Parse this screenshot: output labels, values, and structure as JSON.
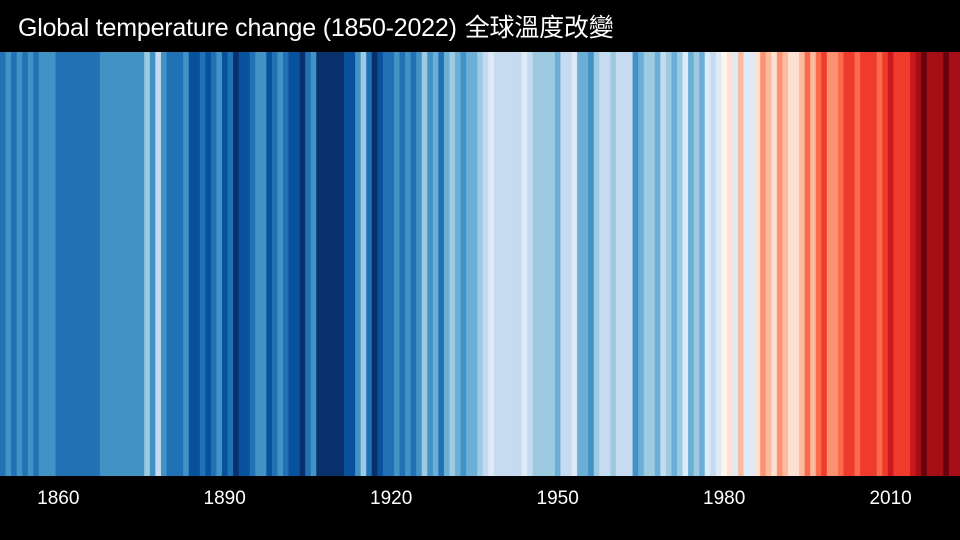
{
  "title": {
    "text": "Global temperature change (1850-2022)",
    "cjk": "全球溫度改變"
  },
  "chart_data": {
    "type": "heatmap",
    "title": "Global temperature change (1850-2022) 全球溫度改變",
    "x_start": 1850,
    "x_end": 2022,
    "xlabel": "",
    "ylabel": "",
    "tick_labels": [
      "1860",
      "1890",
      "1920",
      "1950",
      "1980",
      "2010"
    ],
    "tick_years": [
      1860,
      1890,
      1920,
      1950,
      1980,
      2010
    ],
    "stripes": [
      {
        "from": 1850,
        "to": 1850,
        "color": "#2171b5"
      },
      {
        "from": 1851,
        "to": 1851,
        "color": "#4292c6"
      },
      {
        "from": 1852,
        "to": 1852,
        "color": "#2171b5"
      },
      {
        "from": 1853,
        "to": 1853,
        "color": "#4292c6"
      },
      {
        "from": 1854,
        "to": 1854,
        "color": "#2171b5"
      },
      {
        "from": 1855,
        "to": 1855,
        "color": "#4292c6"
      },
      {
        "from": 1856,
        "to": 1856,
        "color": "#2171b5"
      },
      {
        "from": 1857,
        "to": 1857,
        "color": "#4292c6"
      },
      {
        "from": 1858,
        "to": 1858,
        "color": "#4292c6"
      },
      {
        "from": 1859,
        "to": 1859,
        "color": "#4292c6"
      },
      {
        "from": 1860,
        "to": 1867,
        "color": "#2171b5"
      },
      {
        "from": 1868,
        "to": 1868,
        "color": "#4292c6"
      },
      {
        "from": 1869,
        "to": 1869,
        "color": "#4292c6"
      },
      {
        "from": 1870,
        "to": 1870,
        "color": "#4292c6"
      },
      {
        "from": 1871,
        "to": 1871,
        "color": "#4292c6"
      },
      {
        "from": 1872,
        "to": 1872,
        "color": "#4292c6"
      },
      {
        "from": 1873,
        "to": 1873,
        "color": "#4292c6"
      },
      {
        "from": 1874,
        "to": 1874,
        "color": "#4292c6"
      },
      {
        "from": 1875,
        "to": 1875,
        "color": "#4292c6"
      },
      {
        "from": 1876,
        "to": 1876,
        "color": "#9ecae1"
      },
      {
        "from": 1877,
        "to": 1877,
        "color": "#4292c6"
      },
      {
        "from": 1878,
        "to": 1878,
        "color": "#c6dbef"
      },
      {
        "from": 1879,
        "to": 1879,
        "color": "#4292c6"
      },
      {
        "from": 1880,
        "to": 1880,
        "color": "#2171b5"
      },
      {
        "from": 1881,
        "to": 1881,
        "color": "#2171b5"
      },
      {
        "from": 1882,
        "to": 1882,
        "color": "#2171b5"
      },
      {
        "from": 1883,
        "to": 1883,
        "color": "#4292c6"
      },
      {
        "from": 1884,
        "to": 1884,
        "color": "#08519c"
      },
      {
        "from": 1885,
        "to": 1885,
        "color": "#08519c"
      },
      {
        "from": 1886,
        "to": 1886,
        "color": "#2171b5"
      },
      {
        "from": 1887,
        "to": 1887,
        "color": "#08519c"
      },
      {
        "from": 1888,
        "to": 1888,
        "color": "#2171b5"
      },
      {
        "from": 1889,
        "to": 1889,
        "color": "#4292c6"
      },
      {
        "from": 1890,
        "to": 1890,
        "color": "#08519c"
      },
      {
        "from": 1891,
        "to": 1891,
        "color": "#2171b5"
      },
      {
        "from": 1892,
        "to": 1892,
        "color": "#08306b"
      },
      {
        "from": 1893,
        "to": 1893,
        "color": "#08519c"
      },
      {
        "from": 1894,
        "to": 1894,
        "color": "#08519c"
      },
      {
        "from": 1895,
        "to": 1895,
        "color": "#2171b5"
      },
      {
        "from": 1896,
        "to": 1896,
        "color": "#4292c6"
      },
      {
        "from": 1897,
        "to": 1897,
        "color": "#4292c6"
      },
      {
        "from": 1898,
        "to": 1898,
        "color": "#08519c"
      },
      {
        "from": 1899,
        "to": 1899,
        "color": "#2171b5"
      },
      {
        "from": 1900,
        "to": 1900,
        "color": "#4292c6"
      },
      {
        "from": 1901,
        "to": 1901,
        "color": "#2171b5"
      },
      {
        "from": 1902,
        "to": 1902,
        "color": "#08519c"
      },
      {
        "from": 1903,
        "to": 1903,
        "color": "#08519c"
      },
      {
        "from": 1904,
        "to": 1904,
        "color": "#08306b"
      },
      {
        "from": 1905,
        "to": 1905,
        "color": "#2171b5"
      },
      {
        "from": 1906,
        "to": 1906,
        "color": "#4292c6"
      },
      {
        "from": 1907,
        "to": 1911,
        "color": "#08306b"
      },
      {
        "from": 1912,
        "to": 1912,
        "color": "#08519c"
      },
      {
        "from": 1913,
        "to": 1913,
        "color": "#08519c"
      },
      {
        "from": 1914,
        "to": 1914,
        "color": "#4292c6"
      },
      {
        "from": 1915,
        "to": 1915,
        "color": "#9ecae1"
      },
      {
        "from": 1916,
        "to": 1916,
        "color": "#2171b5"
      },
      {
        "from": 1917,
        "to": 1917,
        "color": "#08306b"
      },
      {
        "from": 1918,
        "to": 1918,
        "color": "#08519c"
      },
      {
        "from": 1919,
        "to": 1919,
        "color": "#2171b5"
      },
      {
        "from": 1920,
        "to": 1920,
        "color": "#2171b5"
      },
      {
        "from": 1921,
        "to": 1921,
        "color": "#4292c6"
      },
      {
        "from": 1922,
        "to": 1922,
        "color": "#2171b5"
      },
      {
        "from": 1923,
        "to": 1923,
        "color": "#4292c6"
      },
      {
        "from": 1924,
        "to": 1924,
        "color": "#2171b5"
      },
      {
        "from": 1925,
        "to": 1925,
        "color": "#4292c6"
      },
      {
        "from": 1926,
        "to": 1926,
        "color": "#9ecae1"
      },
      {
        "from": 1927,
        "to": 1927,
        "color": "#4292c6"
      },
      {
        "from": 1928,
        "to": 1928,
        "color": "#6baed6"
      },
      {
        "from": 1929,
        "to": 1929,
        "color": "#2171b5"
      },
      {
        "from": 1930,
        "to": 1930,
        "color": "#6baed6"
      },
      {
        "from": 1931,
        "to": 1931,
        "color": "#9ecae1"
      },
      {
        "from": 1932,
        "to": 1932,
        "color": "#6baed6"
      },
      {
        "from": 1933,
        "to": 1933,
        "color": "#4292c6"
      },
      {
        "from": 1934,
        "to": 1934,
        "color": "#6baed6"
      },
      {
        "from": 1935,
        "to": 1935,
        "color": "#6baed6"
      },
      {
        "from": 1936,
        "to": 1936,
        "color": "#9ecae1"
      },
      {
        "from": 1937,
        "to": 1937,
        "color": "#c6dbef"
      },
      {
        "from": 1938,
        "to": 1938,
        "color": "#deebf7"
      },
      {
        "from": 1939,
        "to": 1939,
        "color": "#c6dbef"
      },
      {
        "from": 1940,
        "to": 1940,
        "color": "#c6dbef"
      },
      {
        "from": 1941,
        "to": 1941,
        "color": "#c6dbef"
      },
      {
        "from": 1942,
        "to": 1942,
        "color": "#c6dbef"
      },
      {
        "from": 1943,
        "to": 1943,
        "color": "#c6dbef"
      },
      {
        "from": 1944,
        "to": 1944,
        "color": "#deebf7"
      },
      {
        "from": 1945,
        "to": 1945,
        "color": "#c6dbef"
      },
      {
        "from": 1946,
        "to": 1946,
        "color": "#9ecae1"
      },
      {
        "from": 1947,
        "to": 1947,
        "color": "#9ecae1"
      },
      {
        "from": 1948,
        "to": 1948,
        "color": "#9ecae1"
      },
      {
        "from": 1949,
        "to": 1949,
        "color": "#9ecae1"
      },
      {
        "from": 1950,
        "to": 1950,
        "color": "#6baed6"
      },
      {
        "from": 1951,
        "to": 1951,
        "color": "#c6dbef"
      },
      {
        "from": 1952,
        "to": 1952,
        "color": "#c6dbef"
      },
      {
        "from": 1953,
        "to": 1953,
        "color": "#deebf7"
      },
      {
        "from": 1954,
        "to": 1954,
        "color": "#6baed6"
      },
      {
        "from": 1955,
        "to": 1955,
        "color": "#6baed6"
      },
      {
        "from": 1956,
        "to": 1956,
        "color": "#4292c6"
      },
      {
        "from": 1957,
        "to": 1957,
        "color": "#9ecae1"
      },
      {
        "from": 1958,
        "to": 1958,
        "color": "#c6dbef"
      },
      {
        "from": 1959,
        "to": 1959,
        "color": "#c6dbef"
      },
      {
        "from": 1960,
        "to": 1960,
        "color": "#9ecae1"
      },
      {
        "from": 1961,
        "to": 1961,
        "color": "#c6dbef"
      },
      {
        "from": 1962,
        "to": 1962,
        "color": "#c6dbef"
      },
      {
        "from": 1963,
        "to": 1963,
        "color": "#c6dbef"
      },
      {
        "from": 1964,
        "to": 1964,
        "color": "#4292c6"
      },
      {
        "from": 1965,
        "to": 1965,
        "color": "#6baed6"
      },
      {
        "from": 1966,
        "to": 1966,
        "color": "#9ecae1"
      },
      {
        "from": 1967,
        "to": 1967,
        "color": "#9ecae1"
      },
      {
        "from": 1968,
        "to": 1968,
        "color": "#6baed6"
      },
      {
        "from": 1969,
        "to": 1969,
        "color": "#c6dbef"
      },
      {
        "from": 1970,
        "to": 1970,
        "color": "#9ecae1"
      },
      {
        "from": 1971,
        "to": 1971,
        "color": "#6baed6"
      },
      {
        "from": 1972,
        "to": 1972,
        "color": "#9ecae1"
      },
      {
        "from": 1973,
        "to": 1973,
        "color": "#deebf7"
      },
      {
        "from": 1974,
        "to": 1974,
        "color": "#6baed6"
      },
      {
        "from": 1975,
        "to": 1975,
        "color": "#9ecae1"
      },
      {
        "from": 1976,
        "to": 1976,
        "color": "#6baed6"
      },
      {
        "from": 1977,
        "to": 1977,
        "color": "#deebf7"
      },
      {
        "from": 1978,
        "to": 1978,
        "color": "#c6dbef"
      },
      {
        "from": 1979,
        "to": 1979,
        "color": "#deebf7"
      },
      {
        "from": 1980,
        "to": 1980,
        "color": "#fff5f0"
      },
      {
        "from": 1981,
        "to": 1981,
        "color": "#fee0d2"
      },
      {
        "from": 1982,
        "to": 1982,
        "color": "#deebf7"
      },
      {
        "from": 1983,
        "to": 1983,
        "color": "#fcbba1"
      },
      {
        "from": 1984,
        "to": 1984,
        "color": "#deebf7"
      },
      {
        "from": 1985,
        "to": 1985,
        "color": "#deebf7"
      },
      {
        "from": 1986,
        "to": 1986,
        "color": "#fee0d2"
      },
      {
        "from": 1987,
        "to": 1987,
        "color": "#fc9272"
      },
      {
        "from": 1988,
        "to": 1988,
        "color": "#fcbba1"
      },
      {
        "from": 1989,
        "to": 1989,
        "color": "#fee0d2"
      },
      {
        "from": 1990,
        "to": 1990,
        "color": "#fc9272"
      },
      {
        "from": 1991,
        "to": 1991,
        "color": "#fcbba1"
      },
      {
        "from": 1992,
        "to": 1992,
        "color": "#fee0d2"
      },
      {
        "from": 1993,
        "to": 1993,
        "color": "#fee0d2"
      },
      {
        "from": 1994,
        "to": 1994,
        "color": "#fcbba1"
      },
      {
        "from": 1995,
        "to": 1995,
        "color": "#fb6a4a"
      },
      {
        "from": 1996,
        "to": 1996,
        "color": "#fcbba1"
      },
      {
        "from": 1997,
        "to": 1997,
        "color": "#fb6a4a"
      },
      {
        "from": 1998,
        "to": 1998,
        "color": "#ef3b2c"
      },
      {
        "from": 1999,
        "to": 1999,
        "color": "#fc9272"
      },
      {
        "from": 2000,
        "to": 2000,
        "color": "#fc9272"
      },
      {
        "from": 2001,
        "to": 2001,
        "color": "#fb6a4a"
      },
      {
        "from": 2002,
        "to": 2002,
        "color": "#ef3b2c"
      },
      {
        "from": 2003,
        "to": 2003,
        "color": "#ef3b2c"
      },
      {
        "from": 2004,
        "to": 2004,
        "color": "#fb6a4a"
      },
      {
        "from": 2005,
        "to": 2005,
        "color": "#ef3b2c"
      },
      {
        "from": 2006,
        "to": 2006,
        "color": "#ef3b2c"
      },
      {
        "from": 2007,
        "to": 2007,
        "color": "#ef3b2c"
      },
      {
        "from": 2008,
        "to": 2008,
        "color": "#fb6a4a"
      },
      {
        "from": 2009,
        "to": 2009,
        "color": "#ef3b2c"
      },
      {
        "from": 2010,
        "to": 2010,
        "color": "#cb181d"
      },
      {
        "from": 2011,
        "to": 2011,
        "color": "#ef3b2c"
      },
      {
        "from": 2012,
        "to": 2012,
        "color": "#ef3b2c"
      },
      {
        "from": 2013,
        "to": 2013,
        "color": "#ef3b2c"
      },
      {
        "from": 2014,
        "to": 2014,
        "color": "#cb181d"
      },
      {
        "from": 2015,
        "to": 2015,
        "color": "#a50f15"
      },
      {
        "from": 2016,
        "to": 2016,
        "color": "#67000d"
      },
      {
        "from": 2017,
        "to": 2017,
        "color": "#a50f15"
      },
      {
        "from": 2018,
        "to": 2018,
        "color": "#a50f15"
      },
      {
        "from": 2019,
        "to": 2019,
        "color": "#a50f15"
      },
      {
        "from": 2020,
        "to": 2020,
        "color": "#67000d"
      },
      {
        "from": 2021,
        "to": 2021,
        "color": "#a50f15"
      },
      {
        "from": 2022,
        "to": 2022,
        "color": "#a50f15"
      }
    ]
  }
}
